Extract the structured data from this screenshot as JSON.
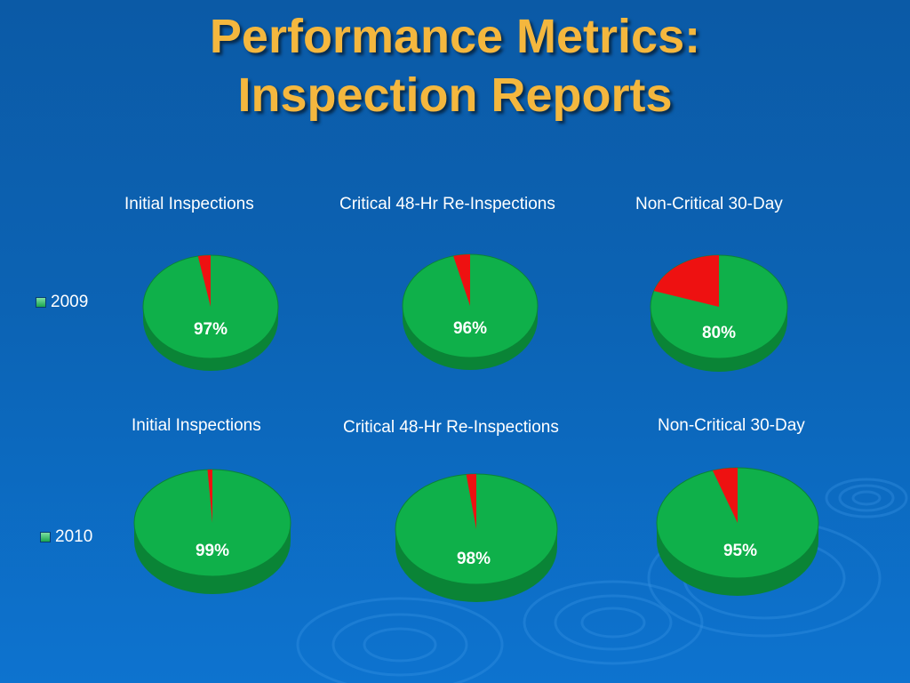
{
  "slide": {
    "title_line1": "Performance Metrics:",
    "title_line2": "Inspection Reports"
  },
  "legend": {
    "row1": "2009",
    "row2": "2010"
  },
  "colors": {
    "pass": "#0fb04a",
    "pass_side": "#0a8436",
    "fail": "#ee1111",
    "fail_side": "#a80d0d",
    "title": "#f4b73e"
  },
  "chart_data": [
    {
      "type": "pie",
      "year": "2009",
      "title": "Initial Inspections",
      "value_label": "97%",
      "slices": [
        {
          "value": 97
        },
        {
          "value": 3
        }
      ]
    },
    {
      "type": "pie",
      "year": "2009",
      "title": "Critical 48-Hr Re-Inspections",
      "value_label": "96%",
      "slices": [
        {
          "value": 96
        },
        {
          "value": 4
        }
      ]
    },
    {
      "type": "pie",
      "year": "2009",
      "title": "Non-Critical 30-Day",
      "value_label": "80%",
      "slices": [
        {
          "value": 80
        },
        {
          "value": 20
        }
      ]
    },
    {
      "type": "pie",
      "year": "2010",
      "title": "Initial Inspections",
      "value_label": "99%",
      "slices": [
        {
          "value": 99
        },
        {
          "value": 1
        }
      ]
    },
    {
      "type": "pie",
      "year": "2010",
      "title": "Critical 48-Hr Re-Inspections",
      "value_label": "98%",
      "slices": [
        {
          "value": 98
        },
        {
          "value": 2
        }
      ]
    },
    {
      "type": "pie",
      "year": "2010",
      "title": "Non-Critical 30-Day",
      "value_label": "95%",
      "slices": [
        {
          "value": 95
        },
        {
          "value": 5
        }
      ]
    }
  ]
}
